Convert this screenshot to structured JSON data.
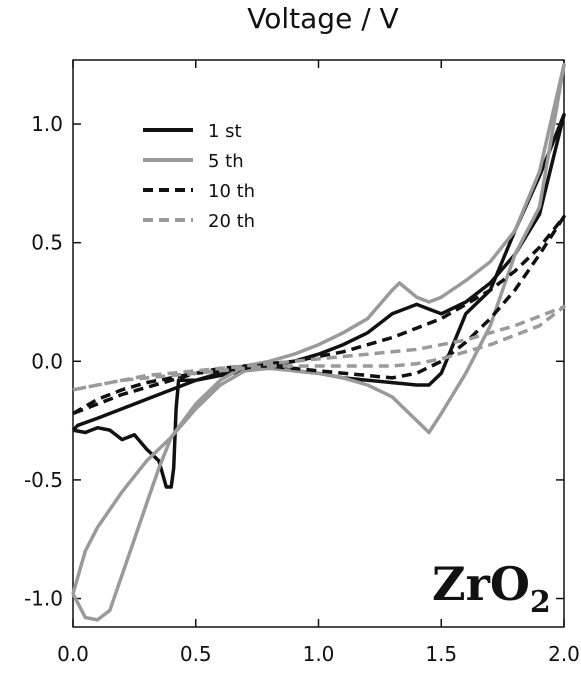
{
  "chart_data": {
    "type": "line",
    "xlabel": "Voltage / V",
    "ylabel": "",
    "xlim": [
      0.0,
      2.0
    ],
    "ylim": [
      -1.12,
      1.27
    ],
    "x_ticks": [
      "0.0",
      "0.5",
      "1.0",
      "1.5",
      "2.0"
    ],
    "y_ticks": [
      "1.0",
      "0.5",
      "0.0",
      "-0.5",
      "-1.0"
    ],
    "legend_position": "top-left",
    "annotation": {
      "main": "ZrO",
      "sub": "2"
    },
    "grid": false,
    "series": [
      {
        "name": "1 st",
        "color": "#111111",
        "dash": "solid",
        "points": [
          [
            0.0,
            -0.29
          ],
          [
            0.05,
            -0.3
          ],
          [
            0.1,
            -0.28
          ],
          [
            0.15,
            -0.29
          ],
          [
            0.2,
            -0.33
          ],
          [
            0.25,
            -0.31
          ],
          [
            0.3,
            -0.37
          ],
          [
            0.35,
            -0.42
          ],
          [
            0.38,
            -0.53
          ],
          [
            0.4,
            -0.53
          ],
          [
            0.41,
            -0.45
          ],
          [
            0.42,
            -0.2
          ],
          [
            0.43,
            -0.08
          ],
          [
            0.5,
            -0.08
          ],
          [
            0.6,
            -0.06
          ],
          [
            0.7,
            -0.04
          ],
          [
            0.8,
            -0.02
          ],
          [
            0.9,
            0.0
          ],
          [
            1.0,
            0.03
          ],
          [
            1.1,
            0.07
          ],
          [
            1.2,
            0.12
          ],
          [
            1.3,
            0.2
          ],
          [
            1.4,
            0.24
          ],
          [
            1.45,
            0.22
          ],
          [
            1.5,
            0.2
          ],
          [
            1.6,
            0.25
          ],
          [
            1.7,
            0.33
          ],
          [
            1.8,
            0.45
          ],
          [
            1.9,
            0.62
          ],
          [
            2.0,
            1.04
          ],
          [
            1.9,
            0.78
          ],
          [
            1.8,
            0.55
          ],
          [
            1.7,
            0.3
          ],
          [
            1.6,
            0.2
          ],
          [
            1.5,
            -0.05
          ],
          [
            1.45,
            -0.1
          ],
          [
            1.4,
            -0.1
          ],
          [
            1.3,
            -0.09
          ],
          [
            1.2,
            -0.08
          ],
          [
            1.1,
            -0.07
          ],
          [
            1.0,
            -0.05
          ],
          [
            0.9,
            -0.04
          ],
          [
            0.8,
            -0.02
          ],
          [
            0.7,
            -0.02
          ],
          [
            0.6,
            -0.05
          ],
          [
            0.5,
            -0.08
          ],
          [
            0.4,
            -0.12
          ],
          [
            0.3,
            -0.16
          ],
          [
            0.2,
            -0.2
          ],
          [
            0.1,
            -0.24
          ],
          [
            0.02,
            -0.27
          ],
          [
            0.0,
            -0.29
          ]
        ]
      },
      {
        "name": "5 th",
        "color": "#9a9a9a",
        "dash": "solid",
        "points": [
          [
            0.0,
            -0.98
          ],
          [
            0.05,
            -1.08
          ],
          [
            0.1,
            -1.09
          ],
          [
            0.15,
            -1.05
          ],
          [
            0.2,
            -0.9
          ],
          [
            0.25,
            -0.75
          ],
          [
            0.3,
            -0.6
          ],
          [
            0.35,
            -0.45
          ],
          [
            0.4,
            -0.32
          ],
          [
            0.5,
            -0.18
          ],
          [
            0.6,
            -0.08
          ],
          [
            0.7,
            -0.02
          ],
          [
            0.8,
            0.0
          ],
          [
            0.9,
            0.03
          ],
          [
            1.0,
            0.07
          ],
          [
            1.1,
            0.12
          ],
          [
            1.2,
            0.18
          ],
          [
            1.3,
            0.3
          ],
          [
            1.33,
            0.33
          ],
          [
            1.4,
            0.27
          ],
          [
            1.45,
            0.25
          ],
          [
            1.5,
            0.27
          ],
          [
            1.6,
            0.34
          ],
          [
            1.7,
            0.42
          ],
          [
            1.8,
            0.55
          ],
          [
            1.9,
            0.8
          ],
          [
            2.0,
            1.25
          ],
          [
            1.9,
            0.65
          ],
          [
            1.8,
            0.45
          ],
          [
            1.7,
            0.15
          ],
          [
            1.6,
            -0.05
          ],
          [
            1.5,
            -0.22
          ],
          [
            1.45,
            -0.3
          ],
          [
            1.4,
            -0.25
          ],
          [
            1.3,
            -0.15
          ],
          [
            1.2,
            -0.1
          ],
          [
            1.1,
            -0.07
          ],
          [
            1.0,
            -0.05
          ],
          [
            0.9,
            -0.04
          ],
          [
            0.8,
            -0.03
          ],
          [
            0.7,
            -0.04
          ],
          [
            0.6,
            -0.1
          ],
          [
            0.5,
            -0.2
          ],
          [
            0.4,
            -0.32
          ],
          [
            0.3,
            -0.42
          ],
          [
            0.2,
            -0.55
          ],
          [
            0.1,
            -0.7
          ],
          [
            0.05,
            -0.8
          ],
          [
            0.0,
            -0.98
          ]
        ]
      },
      {
        "name": "10 th",
        "color": "#111111",
        "dash": "dashed",
        "points": [
          [
            0.0,
            -0.22
          ],
          [
            0.1,
            -0.16
          ],
          [
            0.2,
            -0.12
          ],
          [
            0.3,
            -0.09
          ],
          [
            0.4,
            -0.07
          ],
          [
            0.5,
            -0.05
          ],
          [
            0.6,
            -0.04
          ],
          [
            0.7,
            -0.03
          ],
          [
            0.8,
            -0.01
          ],
          [
            0.9,
            0.0
          ],
          [
            1.0,
            0.02
          ],
          [
            1.1,
            0.04
          ],
          [
            1.2,
            0.07
          ],
          [
            1.3,
            0.1
          ],
          [
            1.4,
            0.14
          ],
          [
            1.5,
            0.18
          ],
          [
            1.6,
            0.24
          ],
          [
            1.7,
            0.3
          ],
          [
            1.8,
            0.38
          ],
          [
            1.9,
            0.48
          ],
          [
            2.0,
            0.61
          ],
          [
            1.9,
            0.45
          ],
          [
            1.8,
            0.3
          ],
          [
            1.7,
            0.18
          ],
          [
            1.6,
            0.08
          ],
          [
            1.5,
            0.0
          ],
          [
            1.4,
            -0.05
          ],
          [
            1.3,
            -0.07
          ],
          [
            1.2,
            -0.06
          ],
          [
            1.1,
            -0.05
          ],
          [
            1.0,
            -0.04
          ],
          [
            0.9,
            -0.03
          ],
          [
            0.8,
            -0.02
          ],
          [
            0.7,
            -0.02
          ],
          [
            0.6,
            -0.03
          ],
          [
            0.5,
            -0.05
          ],
          [
            0.4,
            -0.08
          ],
          [
            0.3,
            -0.11
          ],
          [
            0.2,
            -0.14
          ],
          [
            0.1,
            -0.18
          ],
          [
            0.0,
            -0.22
          ]
        ]
      },
      {
        "name": "20 th",
        "color": "#9a9a9a",
        "dash": "dashed",
        "points": [
          [
            0.0,
            -0.12
          ],
          [
            0.1,
            -0.1
          ],
          [
            0.2,
            -0.08
          ],
          [
            0.3,
            -0.06
          ],
          [
            0.4,
            -0.05
          ],
          [
            0.5,
            -0.04
          ],
          [
            0.6,
            -0.03
          ],
          [
            0.7,
            -0.02
          ],
          [
            0.8,
            -0.01
          ],
          [
            0.9,
            0.0
          ],
          [
            1.0,
            0.01
          ],
          [
            1.1,
            0.02
          ],
          [
            1.2,
            0.03
          ],
          [
            1.3,
            0.04
          ],
          [
            1.4,
            0.05
          ],
          [
            1.5,
            0.07
          ],
          [
            1.6,
            0.09
          ],
          [
            1.7,
            0.12
          ],
          [
            1.8,
            0.15
          ],
          [
            1.9,
            0.19
          ],
          [
            2.0,
            0.23
          ],
          [
            1.9,
            0.15
          ],
          [
            1.8,
            0.11
          ],
          [
            1.7,
            0.07
          ],
          [
            1.6,
            0.04
          ],
          [
            1.5,
            0.01
          ],
          [
            1.4,
            -0.01
          ],
          [
            1.3,
            -0.02
          ],
          [
            1.2,
            -0.02
          ],
          [
            1.1,
            -0.02
          ],
          [
            1.0,
            -0.02
          ],
          [
            0.9,
            -0.02
          ],
          [
            0.8,
            -0.02
          ],
          [
            0.7,
            -0.03
          ],
          [
            0.6,
            -0.04
          ],
          [
            0.5,
            -0.05
          ],
          [
            0.4,
            -0.06
          ],
          [
            0.3,
            -0.07
          ],
          [
            0.2,
            -0.08
          ],
          [
            0.1,
            -0.1
          ],
          [
            0.0,
            -0.12
          ]
        ]
      }
    ]
  }
}
